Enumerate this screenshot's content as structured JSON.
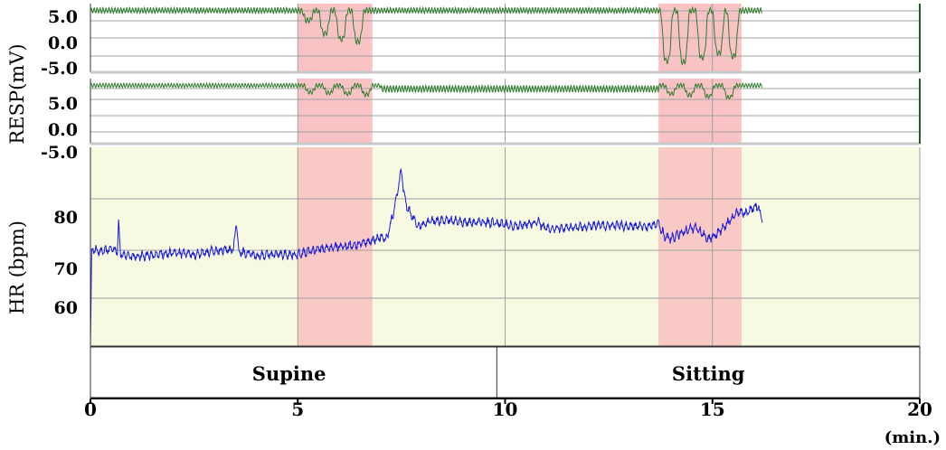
{
  "chart_data": {
    "type": "line",
    "x_unit_label": "(min.)",
    "xlim": [
      0,
      20
    ],
    "x_ticks": [
      "0",
      "5",
      "10",
      "15",
      "20"
    ],
    "phases": [
      {
        "label": "Supine",
        "start": 0,
        "end": 9.8
      },
      {
        "label": "Sitting",
        "start": 9.8,
        "end": 20
      }
    ],
    "highlight_intervals": [
      [
        5.0,
        6.8
      ],
      [
        13.7,
        15.7
      ]
    ],
    "colors": {
      "resp_trace": "#2e7d2e",
      "hr_trace": "#1a1adb",
      "hr_background": "#f7fae0",
      "highlight": "#f8b8bc",
      "grid": "#a0a0a0"
    },
    "panels": [
      {
        "id": "resp-upper",
        "ylabel": "RESP(mV)",
        "y_ticks": [
          "5.0",
          "0.0",
          "-5.0"
        ],
        "ylim": [
          -7,
          8
        ],
        "baseline": 6.5,
        "end_time": 16.2,
        "dip_events": [
          {
            "t": 5.25,
            "depth": 2.2
          },
          {
            "t": 5.65,
            "depth": 5.0
          },
          {
            "t": 6.05,
            "depth": 6.3
          },
          {
            "t": 6.45,
            "depth": 6.8
          },
          {
            "t": 13.9,
            "depth": 11.0
          },
          {
            "t": 14.3,
            "depth": 11.3
          },
          {
            "t": 14.75,
            "depth": 10.3
          },
          {
            "t": 15.15,
            "depth": 9.3
          },
          {
            "t": 15.5,
            "depth": 10.0
          }
        ]
      },
      {
        "id": "resp-lower",
        "ylabel": "",
        "y_ticks": [
          "5.0",
          "0.0",
          "-5.0"
        ],
        "ylim": [
          -8,
          11
        ],
        "baseline": 9.0,
        "end_time": 16.2,
        "dip_events": [
          {
            "t": 5.3,
            "depth": 2.0
          },
          {
            "t": 5.75,
            "depth": 2.2
          },
          {
            "t": 6.2,
            "depth": 2.4
          },
          {
            "t": 6.65,
            "depth": 2.6
          },
          {
            "t": 14.0,
            "depth": 2.4
          },
          {
            "t": 14.45,
            "depth": 2.8
          },
          {
            "t": 14.9,
            "depth": 3.2
          },
          {
            "t": 15.4,
            "depth": 3.5
          }
        ]
      },
      {
        "id": "hr",
        "ylabel": "HR (bpm)",
        "y_ticks": [
          "80",
          "70",
          "60"
        ],
        "ylim": [
          51.5,
          90.5
        ],
        "end_time": 16.2,
        "points": [
          [
            0.0,
            51.5
          ],
          [
            0.03,
            70.5
          ],
          [
            0.3,
            70.0
          ],
          [
            0.5,
            70.5
          ],
          [
            0.65,
            70.0
          ],
          [
            0.68,
            76.5
          ],
          [
            0.72,
            69.5
          ],
          [
            1.0,
            69.0
          ],
          [
            1.5,
            69.3
          ],
          [
            2.0,
            69.8
          ],
          [
            2.5,
            69.5
          ],
          [
            3.0,
            70.2
          ],
          [
            3.45,
            70.5
          ],
          [
            3.52,
            76.0
          ],
          [
            3.58,
            70.0
          ],
          [
            4.0,
            69.3
          ],
          [
            4.5,
            69.5
          ],
          [
            5.0,
            69.5
          ],
          [
            5.5,
            70.5
          ],
          [
            6.0,
            71.0
          ],
          [
            6.5,
            71.5
          ],
          [
            6.9,
            72.5
          ],
          [
            7.0,
            73.0
          ],
          [
            7.15,
            72.5
          ],
          [
            7.3,
            77.5
          ],
          [
            7.42,
            82.5
          ],
          [
            7.5,
            86.0
          ],
          [
            7.55,
            82.0
          ],
          [
            7.6,
            79.5
          ],
          [
            7.75,
            77.0
          ],
          [
            7.9,
            75.0
          ],
          [
            8.2,
            76.0
          ],
          [
            8.6,
            76.3
          ],
          [
            9.0,
            75.8
          ],
          [
            9.5,
            75.8
          ],
          [
            9.9,
            75.5
          ],
          [
            10.3,
            75.0
          ],
          [
            10.5,
            75.5
          ],
          [
            10.8,
            75.8
          ],
          [
            11.0,
            74.5
          ],
          [
            11.5,
            74.8
          ],
          [
            12.0,
            75.0
          ],
          [
            12.5,
            75.2
          ],
          [
            13.0,
            75.0
          ],
          [
            13.5,
            75.0
          ],
          [
            13.7,
            75.5
          ],
          [
            13.85,
            73.0
          ],
          [
            14.0,
            72.5
          ],
          [
            14.3,
            74.0
          ],
          [
            14.6,
            74.8
          ],
          [
            14.9,
            72.5
          ],
          [
            15.1,
            73.5
          ],
          [
            15.3,
            75.0
          ],
          [
            15.5,
            77.0
          ],
          [
            15.65,
            78.0
          ],
          [
            15.8,
            77.5
          ],
          [
            15.95,
            78.5
          ],
          [
            16.1,
            79.0
          ],
          [
            16.2,
            76.0
          ]
        ]
      }
    ]
  }
}
